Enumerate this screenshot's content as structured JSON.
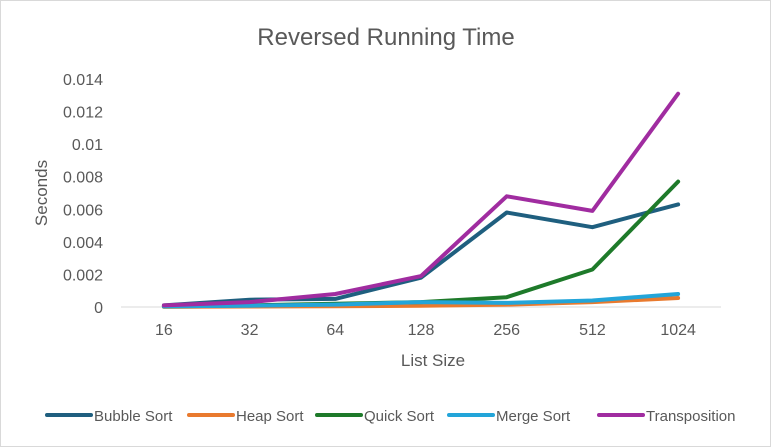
{
  "chart_data": {
    "type": "line",
    "title": "Reversed Running Time",
    "xlabel": "List Size",
    "ylabel": "Seconds",
    "categories": [
      "16",
      "32",
      "64",
      "128",
      "256",
      "512",
      "1024"
    ],
    "ylim": [
      0,
      0.014
    ],
    "yticks": [
      "0",
      "0.002",
      "0.004",
      "0.006",
      "0.008",
      "0.01",
      "0.012",
      "0.014"
    ],
    "grid": false,
    "legend_position": "bottom",
    "series": [
      {
        "name": "Bubble Sort",
        "color": "#1f5f7f",
        "values": [
          0.0001,
          0.00045,
          0.0005,
          0.0018,
          0.0058,
          0.0049,
          0.0063
        ]
      },
      {
        "name": "Heap Sort",
        "color": "#e97a2e",
        "values": [
          2e-05,
          3e-05,
          4e-05,
          8e-05,
          0.00015,
          0.0003,
          0.00055
        ]
      },
      {
        "name": "Quick Sort",
        "color": "#1e7a2a",
        "values": [
          3e-05,
          0.0001,
          0.0002,
          0.0003,
          0.0006,
          0.0023,
          0.0077
        ]
      },
      {
        "name": "Merge Sort",
        "color": "#23a5d9",
        "values": [
          4e-05,
          8e-05,
          0.00015,
          0.0003,
          0.00025,
          0.0004,
          0.0008
        ]
      },
      {
        "name": "Transposition",
        "color": "#a02ca0",
        "values": [
          0.0001,
          0.0003,
          0.0008,
          0.0019,
          0.0068,
          0.0059,
          0.0131
        ]
      }
    ]
  }
}
